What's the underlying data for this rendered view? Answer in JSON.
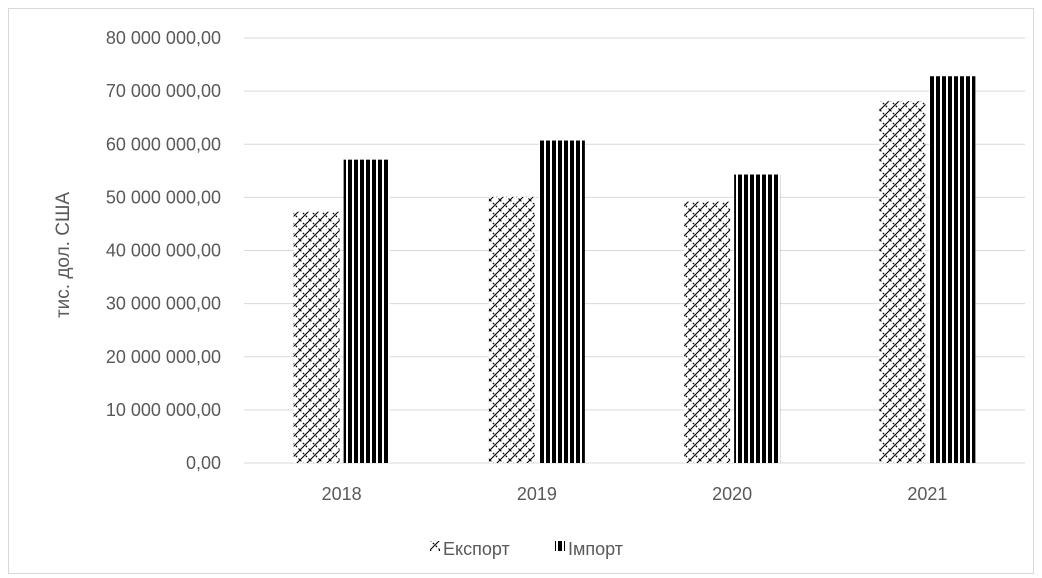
{
  "chart_data": {
    "type": "bar",
    "title": "",
    "xlabel": "",
    "ylabel": "тис. дол. США",
    "categories": [
      "2018",
      "2019",
      "2020",
      "2021"
    ],
    "series": [
      {
        "name": "Експорт",
        "values": [
          47300000,
          50100000,
          49200000,
          68100000
        ],
        "pattern": "crosshatch"
      },
      {
        "name": "Імпорт",
        "values": [
          57100000,
          60700000,
          54300000,
          72800000
        ],
        "pattern": "vertical-stripes"
      }
    ],
    "ylim": [
      0,
      80000000
    ],
    "yticks": [
      "0,00",
      "10 000 000,00",
      "20 000 000,00",
      "30 000 000,00",
      "40 000 000,00",
      "50 000 000,00",
      "60 000 000,00",
      "70 000 000,00",
      "80 000 000,00"
    ],
    "grid": true,
    "legend_position": "bottom",
    "colors": {
      "grid": "#d9d9d9",
      "axis": "#d9d9d9",
      "bar": "#000000",
      "text": "#595959"
    }
  }
}
